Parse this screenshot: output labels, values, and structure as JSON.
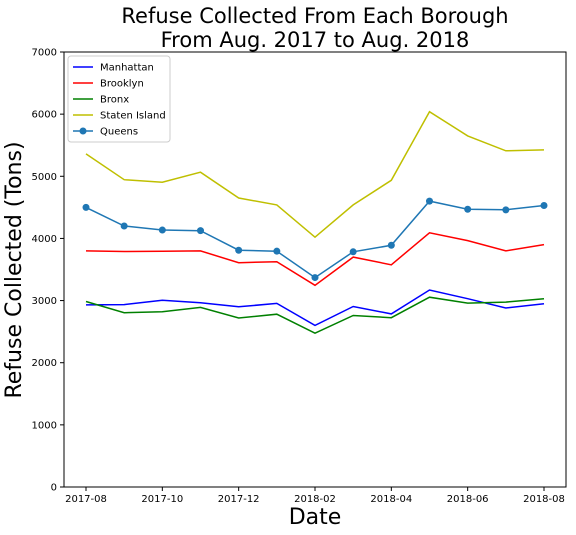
{
  "chart_data": {
    "type": "line",
    "title_lines": [
      "Refuse Collected From Each Borough",
      "From Aug. 2017 to Aug. 2018"
    ],
    "xlabel": "Date",
    "ylabel": "Refuse Collected (Tons)",
    "x": [
      "2017-08",
      "2017-09",
      "2017-10",
      "2017-11",
      "2017-12",
      "2018-01",
      "2018-02",
      "2018-03",
      "2018-04",
      "2018-05",
      "2018-06",
      "2018-07",
      "2018-08"
    ],
    "x_tick_labels": [
      "2017-08",
      "2017-10",
      "2017-12",
      "2018-02",
      "2018-04",
      "2018-06",
      "2018-08"
    ],
    "ylim": [
      0,
      7000
    ],
    "y_ticks": [
      0,
      1000,
      2000,
      3000,
      4000,
      5000,
      6000,
      7000
    ],
    "grid": false,
    "legend_position": "top-left",
    "series": [
      {
        "name": "Manhattan",
        "color": "#0000ff",
        "marker": false,
        "values": [
          2930,
          2935,
          3005,
          2965,
          2900,
          2955,
          2600,
          2905,
          2785,
          3170,
          3030,
          2880,
          2950
        ]
      },
      {
        "name": "Brooklyn",
        "color": "#ff0000",
        "marker": false,
        "values": [
          3800,
          3790,
          3795,
          3800,
          3610,
          3625,
          3245,
          3700,
          3575,
          4090,
          3965,
          3800,
          3900
        ]
      },
      {
        "name": "Bronx",
        "color": "#008000",
        "marker": false,
        "values": [
          2985,
          2805,
          2820,
          2890,
          2720,
          2780,
          2475,
          2760,
          2725,
          3055,
          2960,
          2975,
          3030
        ]
      },
      {
        "name": "Staten Island",
        "color": "#bfbf00",
        "marker": false,
        "values": [
          5360,
          4945,
          4905,
          5065,
          4650,
          4540,
          4020,
          4540,
          4935,
          6040,
          5650,
          5410,
          5425
        ]
      },
      {
        "name": "Queens",
        "color": "#1f77b4",
        "marker": true,
        "values": [
          4500,
          4200,
          4135,
          4125,
          3810,
          3795,
          3370,
          3785,
          3890,
          4600,
          4470,
          4460,
          4530
        ]
      }
    ]
  }
}
